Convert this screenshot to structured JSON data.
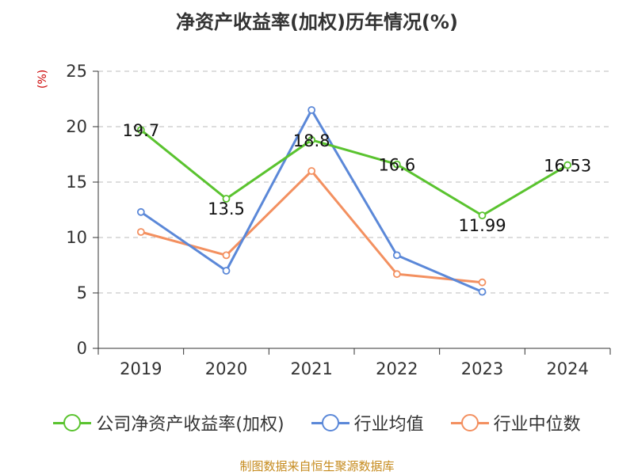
{
  "chart_data": {
    "type": "line",
    "title": "净资产收益率(加权)历年情况(%)",
    "ylabel": "(%)",
    "xlabel": "",
    "categories": [
      "2019",
      "2020",
      "2021",
      "2022",
      "2023",
      "2024"
    ],
    "ylim": [
      0,
      25
    ],
    "yticks": [
      0,
      5,
      10,
      15,
      20,
      25
    ],
    "grid": true,
    "series": [
      {
        "name": "公司净资产收益率(加权)",
        "color": "#5ac32f",
        "values": [
          19.7,
          13.5,
          18.8,
          16.6,
          11.99,
          16.53
        ],
        "labels": [
          "19.7",
          "13.5",
          "18.8",
          "16.6",
          "11.99",
          "16.53"
        ]
      },
      {
        "name": "行业均值",
        "color": "#5b88d8",
        "values": [
          12.3,
          7.0,
          21.5,
          8.4,
          5.1,
          null
        ]
      },
      {
        "name": "行业中位数",
        "color": "#f39060",
        "values": [
          10.5,
          8.4,
          16.0,
          6.7,
          5.95,
          null
        ]
      }
    ],
    "legend": "bottom-center",
    "source": "制图数据来自恒生聚源数据库"
  }
}
